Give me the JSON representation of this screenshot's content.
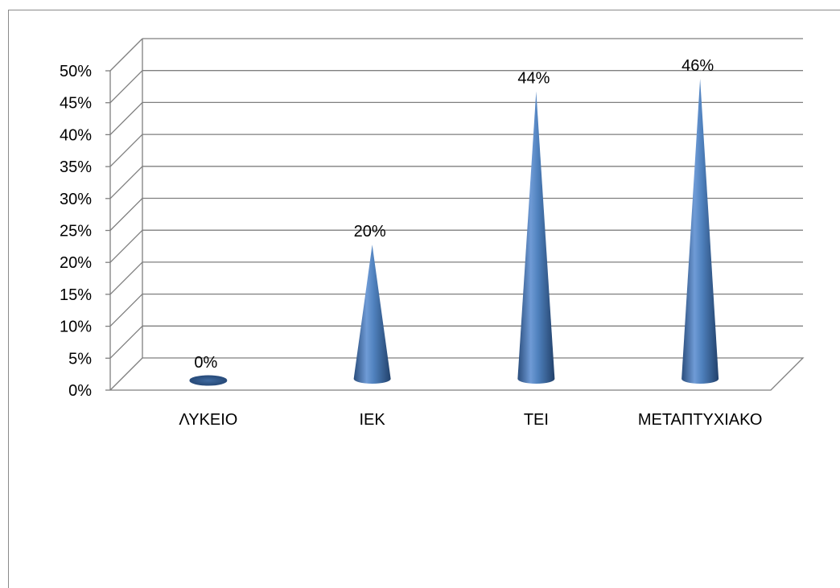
{
  "chart_data": {
    "type": "bar",
    "bar_shape": "cone-3d",
    "categories": [
      "ΛΥΚΕΙΟ",
      "ΙΕΚ",
      "ΤΕΙ",
      "ΜΕΤΑΠΤΥΧΙΑΚΟ"
    ],
    "values": [
      0,
      20,
      44,
      46
    ],
    "data_labels": [
      "0%",
      "20%",
      "44%",
      "46%"
    ],
    "y_ticks": [
      "0%",
      "5%",
      "10%",
      "15%",
      "20%",
      "25%",
      "30%",
      "35%",
      "40%",
      "45%",
      "50%"
    ],
    "ylim": [
      0,
      50
    ],
    "y_step": 5,
    "grid": true,
    "legend": "none",
    "bar_color": "#4f81bd",
    "grid_color": "#7f7f7f",
    "title": "",
    "xlabel": "",
    "ylabel": ""
  }
}
